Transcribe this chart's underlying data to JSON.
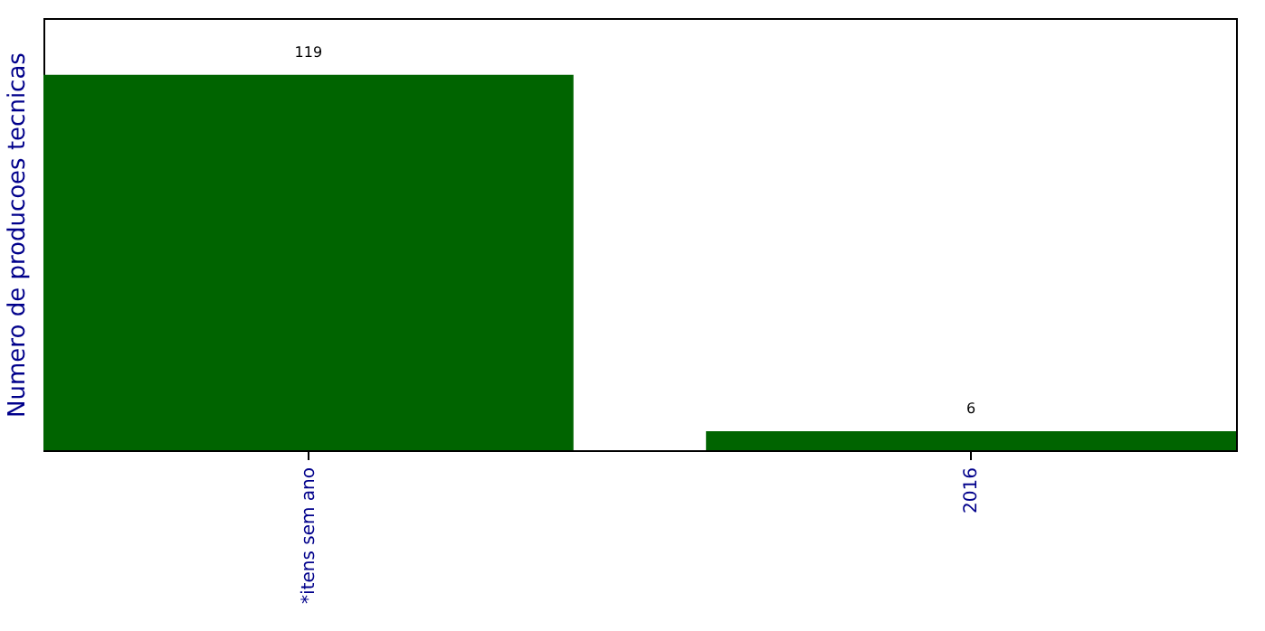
{
  "chart_data": {
    "type": "bar",
    "ylabel": "Numero de producoes tecnicas",
    "categories": [
      "*itens sem ano",
      "2016"
    ],
    "values": [
      119,
      6
    ],
    "color": "#006400",
    "ylim": [
      0,
      137
    ],
    "data_labels": true,
    "tick_labels": "x"
  }
}
